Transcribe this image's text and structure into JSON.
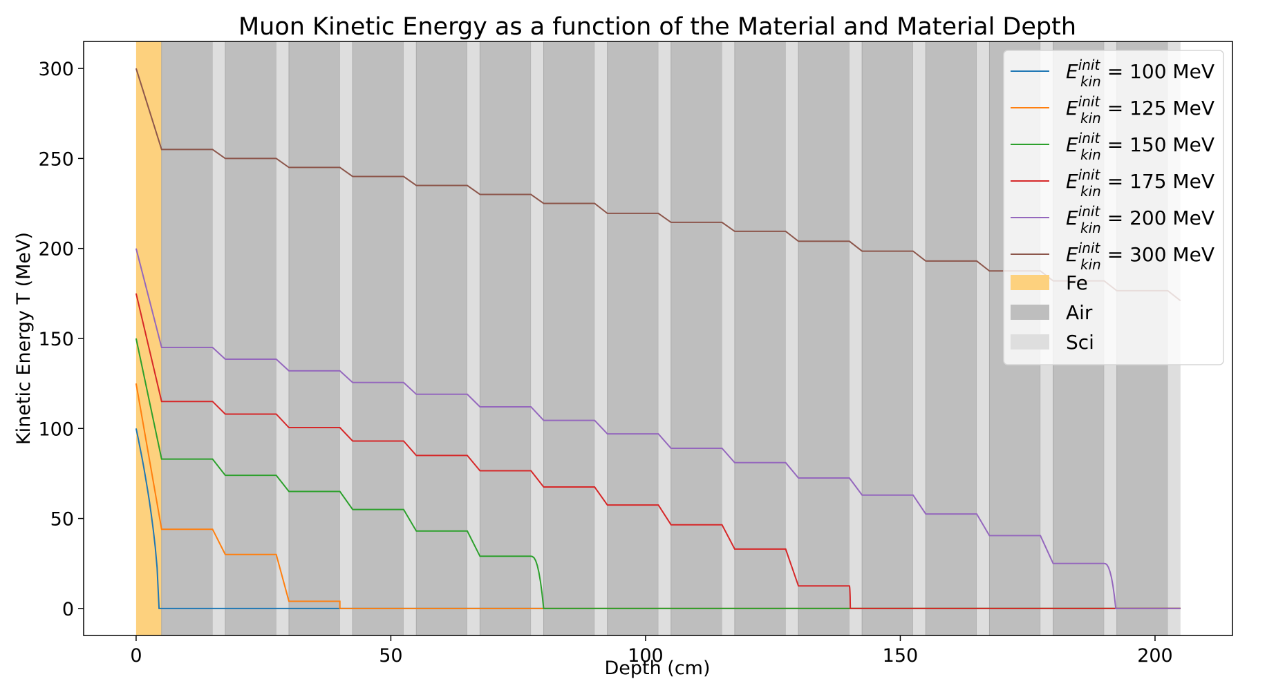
{
  "chart_data": {
    "type": "line",
    "title": "Muon Kinetic Energy as a function of the Material and Material Depth",
    "xlabel": "Depth (cm)",
    "ylabel": "Kinetic Energy T (MeV)",
    "xlim": [
      -10.3,
      215.2
    ],
    "ylim": [
      -15,
      315
    ],
    "xticks": [
      0,
      50,
      100,
      150,
      200
    ],
    "yticks": [
      0,
      50,
      100,
      150,
      200,
      250,
      300
    ],
    "grid": false,
    "legend_position": "top-right",
    "layout": {
      "fe": [
        0,
        5
      ],
      "period": 12.5,
      "air_width": 10,
      "sci_width": 2.5,
      "end": 205
    },
    "materials": [
      {
        "name": "Fe",
        "color": "#fdd17e"
      },
      {
        "name": "Air",
        "color": "#bebebe"
      },
      {
        "name": "Sci",
        "color": "#dedede"
      }
    ],
    "series": [
      {
        "label_prefix": "E",
        "label_sup": "init",
        "label_sub": "kin",
        "label_value": " = 100 MeV",
        "color": "#1f77b4",
        "initial": 100,
        "fe_exit": 0,
        "plateaus": [],
        "zero_at": 4.5
      },
      {
        "label_prefix": "E",
        "label_sup": "init",
        "label_sub": "kin",
        "label_value": " = 125 MeV",
        "color": "#ff7f0e",
        "initial": 125,
        "fe_exit": 44,
        "plateaus": [
          44,
          30,
          4
        ],
        "zero_at": 40
      },
      {
        "label_prefix": "E",
        "label_sup": "init",
        "label_sub": "kin",
        "label_value": " = 150 MeV",
        "color": "#2ca02c",
        "initial": 150,
        "fe_exit": 83,
        "plateaus": [
          83,
          74,
          65,
          55,
          43,
          29
        ],
        "zero_at": 80
      },
      {
        "label_prefix": "E",
        "label_sup": "init",
        "label_sub": "kin",
        "label_value": " = 175 MeV",
        "color": "#d62728",
        "initial": 175,
        "fe_exit": 115,
        "plateaus": [
          115,
          108,
          100.5,
          93,
          85,
          76.5,
          67.5,
          57.5,
          46.5,
          33,
          12.5
        ],
        "zero_at": 140.2
      },
      {
        "label_prefix": "E",
        "label_sup": "init",
        "label_sub": "kin",
        "label_value": " = 200 MeV",
        "color": "#9467bd",
        "initial": 200,
        "fe_exit": 145,
        "plateaus": [
          145,
          138.5,
          132,
          125.5,
          119,
          112,
          104.5,
          97,
          89,
          81,
          72.5,
          63,
          52.5,
          40.5,
          25
        ],
        "zero_at": 192.3
      },
      {
        "label_prefix": "E",
        "label_sup": "init",
        "label_sub": "kin",
        "label_value": " = 300 MeV",
        "color": "#8c564b",
        "initial": 300,
        "fe_exit": 255,
        "plateaus": [
          255,
          250,
          245,
          240,
          235,
          230,
          225,
          219.5,
          214.5,
          209.5,
          204,
          198.5,
          193,
          187.5,
          182,
          176.5
        ],
        "end_value": 171,
        "zero_at": null
      }
    ]
  }
}
